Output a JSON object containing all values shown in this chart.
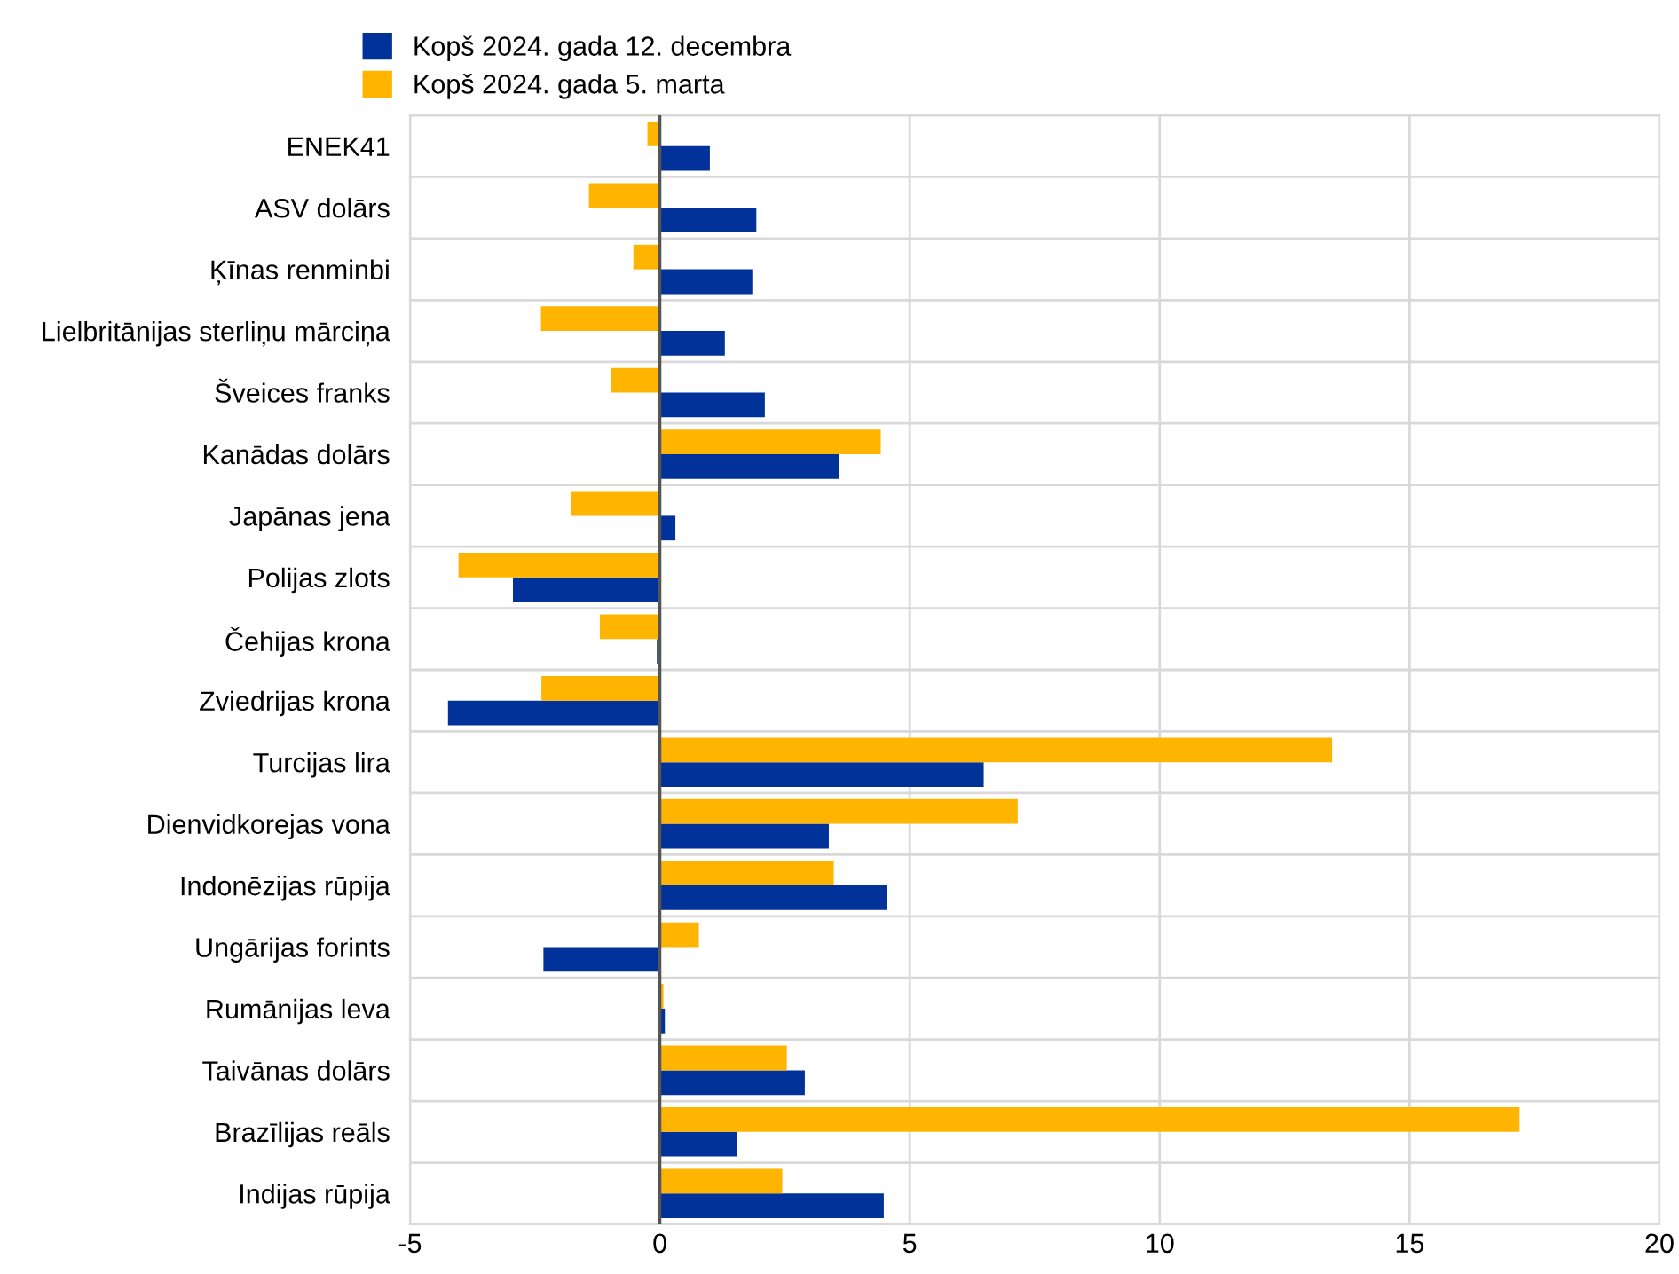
{
  "chart_data": {
    "type": "bar",
    "orientation": "horizontal",
    "categories": [
      "ENEK41",
      "ASV dolārs",
      "Ķīnas renminbi",
      "Lielbritānijas sterliņu mārciņa",
      "Šveices franks",
      "Kanādas dolārs",
      "Japānas jena",
      "Polijas zlots",
      "Čehijas krona",
      "Zviedrijas krona",
      "Turcijas lira",
      "Dienvidkorejas vona",
      "Indonēzijas rūpija",
      "Ungārijas forints",
      "Rumānijas leva",
      "Taivānas dolārs",
      "Brazīlijas reāls",
      "Indijas rūpija"
    ],
    "series": [
      {
        "name": "Kopš 2024. gada 12. decembra",
        "color": "#003299",
        "values": [
          1.0,
          1.93,
          1.85,
          1.3,
          2.1,
          3.59,
          0.31,
          -2.94,
          -0.06,
          -4.24,
          6.48,
          3.38,
          4.54,
          -2.33,
          0.1,
          2.9,
          1.55,
          4.48
        ]
      },
      {
        "name": "Kopš 2024. gada 5. marta",
        "color": "#ffb400",
        "values": [
          -0.25,
          -1.42,
          -0.53,
          -2.38,
          -0.97,
          4.42,
          -1.78,
          -4.03,
          -1.2,
          -2.37,
          13.45,
          7.16,
          3.48,
          0.78,
          0.07,
          2.54,
          17.2,
          2.45
        ]
      }
    ],
    "xlim": [
      -5,
      20
    ],
    "xticks": [
      -5,
      0,
      5,
      10,
      15,
      20
    ],
    "grid": true,
    "legend": "top left"
  }
}
